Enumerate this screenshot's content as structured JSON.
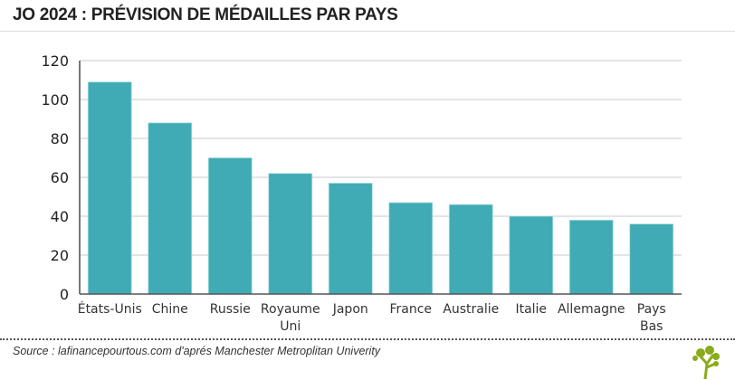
{
  "title": "JO 2024 : PRÉVISION DE MÉDAILLES PAR PAYS",
  "source": "Source : lafinancepourtous.com d'aprés Manchester Metroplitan Univerity",
  "chart_data": {
    "type": "bar",
    "categories": [
      "États-Unis",
      "Chine",
      "Russie",
      "Royaume Uni",
      "Japon",
      "France",
      "Australie",
      "Italie",
      "Allemagne",
      "Pays Bas"
    ],
    "values": [
      109,
      88,
      70,
      62,
      57,
      47,
      46,
      40,
      38,
      36
    ],
    "ylim": [
      0,
      120
    ],
    "yticks": [
      0,
      20,
      40,
      60,
      80,
      100,
      120
    ],
    "grid": true,
    "bar_color": "#40abb5"
  }
}
